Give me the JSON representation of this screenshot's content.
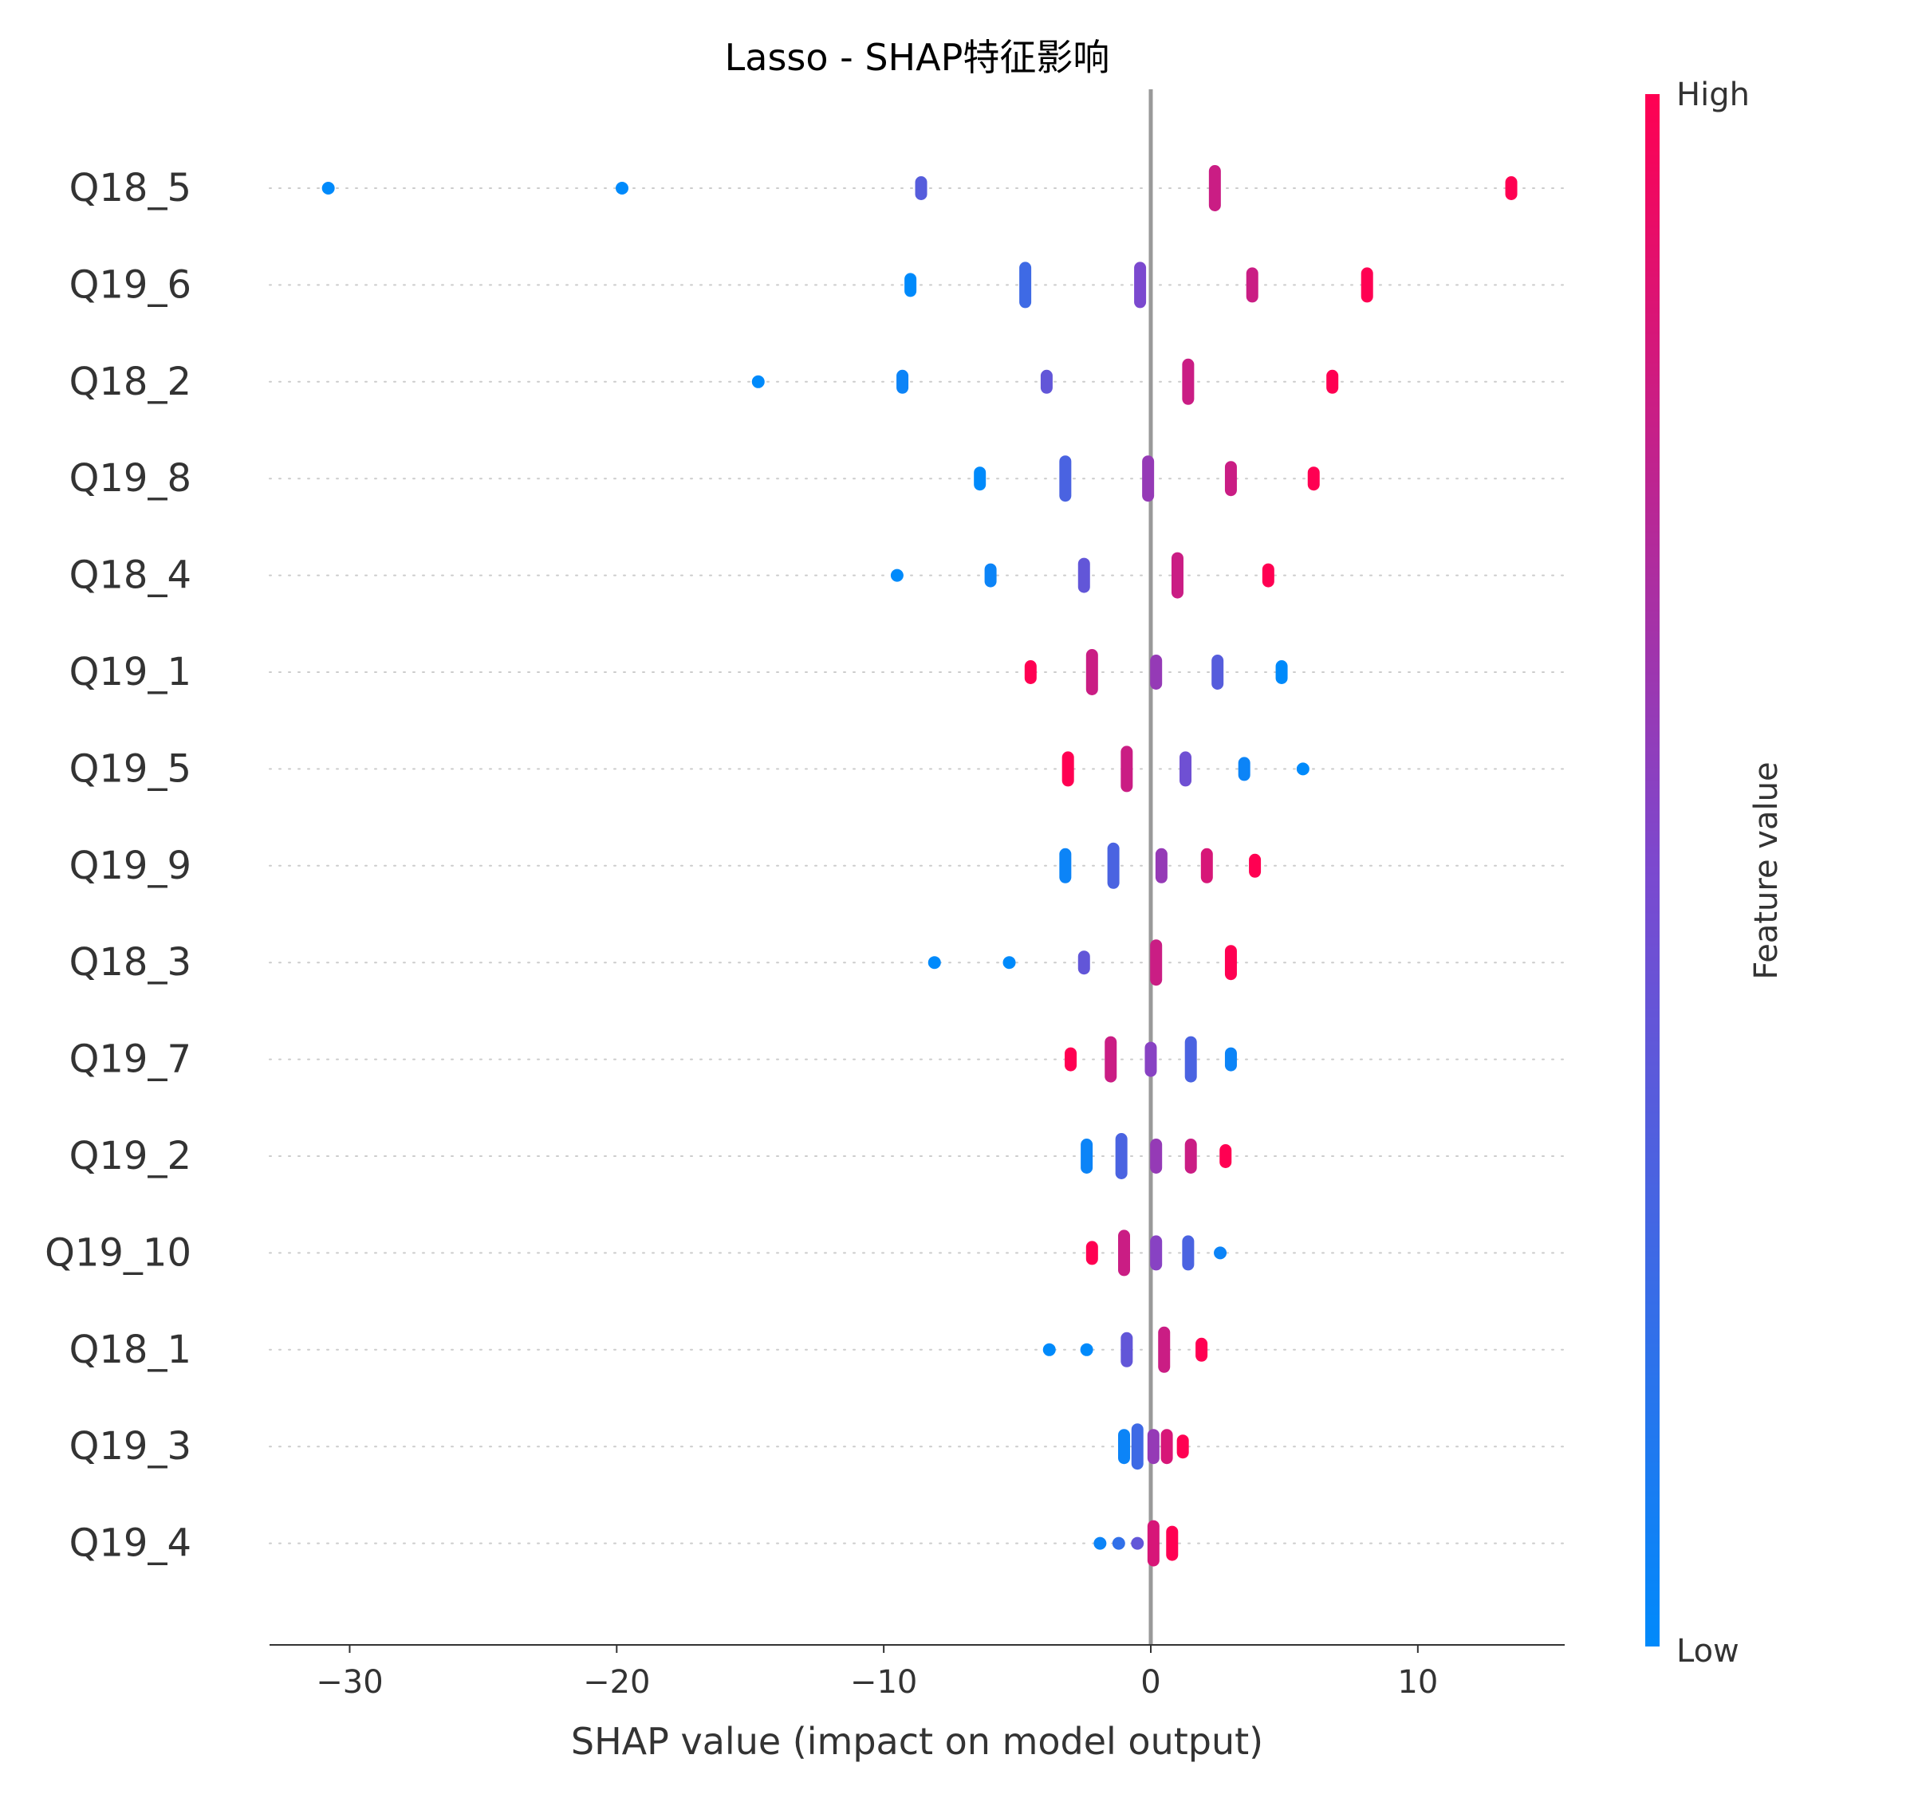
{
  "chart_data": {
    "type": "scatter",
    "subtype": "shap-beeswarm",
    "title": "Lasso - SHAP特征影响",
    "xlabel": "SHAP value (impact on model output)",
    "xlim": [
      -33,
      15.5
    ],
    "xticks": [
      {
        "value": -30,
        "label": "−30"
      },
      {
        "value": -20,
        "label": "−20"
      },
      {
        "value": -10,
        "label": "−10"
      },
      {
        "value": 0,
        "label": "0"
      },
      {
        "value": 10,
        "label": "10"
      }
    ],
    "colorbar": {
      "label": "Feature value",
      "high_label": "High",
      "low_label": "Low",
      "low_color": "#008afb",
      "mid_color": "#7b49cf",
      "high_color": "#ff0052"
    },
    "features": [
      {
        "name": "Q18_5",
        "points": [
          {
            "x": -30.8,
            "f": 0.0,
            "n": 1
          },
          {
            "x": -19.8,
            "f": 0.0,
            "n": 1
          },
          {
            "x": -8.6,
            "f": 0.35,
            "n": 2
          },
          {
            "x": 2.4,
            "f": 0.8,
            "n": 4
          },
          {
            "x": 13.5,
            "f": 1.0,
            "n": 2
          }
        ]
      },
      {
        "name": "Q19_6",
        "points": [
          {
            "x": -9.0,
            "f": 0.0,
            "n": 2
          },
          {
            "x": -4.7,
            "f": 0.25,
            "n": 4
          },
          {
            "x": -0.4,
            "f": 0.5,
            "n": 4
          },
          {
            "x": 3.8,
            "f": 0.8,
            "n": 3
          },
          {
            "x": 8.1,
            "f": 1.0,
            "n": 3
          }
        ]
      },
      {
        "name": "Q18_2",
        "points": [
          {
            "x": -14.7,
            "f": 0.0,
            "n": 1
          },
          {
            "x": -9.3,
            "f": 0.05,
            "n": 2
          },
          {
            "x": -3.9,
            "f": 0.4,
            "n": 2
          },
          {
            "x": 1.4,
            "f": 0.8,
            "n": 4
          },
          {
            "x": 6.8,
            "f": 1.0,
            "n": 2
          }
        ]
      },
      {
        "name": "Q19_8",
        "points": [
          {
            "x": -6.4,
            "f": 0.0,
            "n": 2
          },
          {
            "x": -3.2,
            "f": 0.3,
            "n": 4
          },
          {
            "x": -0.1,
            "f": 0.6,
            "n": 4
          },
          {
            "x": 3.0,
            "f": 0.8,
            "n": 3
          },
          {
            "x": 6.1,
            "f": 1.0,
            "n": 2
          }
        ]
      },
      {
        "name": "Q18_4",
        "points": [
          {
            "x": -9.5,
            "f": 0.0,
            "n": 1
          },
          {
            "x": -6.0,
            "f": 0.05,
            "n": 2
          },
          {
            "x": -2.5,
            "f": 0.4,
            "n": 3
          },
          {
            "x": 1.0,
            "f": 0.8,
            "n": 4
          },
          {
            "x": 4.4,
            "f": 1.0,
            "n": 2
          }
        ]
      },
      {
        "name": "Q19_1",
        "points": [
          {
            "x": -4.5,
            "f": 1.0,
            "n": 2
          },
          {
            "x": -2.2,
            "f": 0.8,
            "n": 4
          },
          {
            "x": 0.2,
            "f": 0.6,
            "n": 3
          },
          {
            "x": 2.5,
            "f": 0.35,
            "n": 3
          },
          {
            "x": 4.9,
            "f": 0.0,
            "n": 2
          }
        ]
      },
      {
        "name": "Q19_5",
        "points": [
          {
            "x": -3.1,
            "f": 1.0,
            "n": 3
          },
          {
            "x": -0.9,
            "f": 0.8,
            "n": 4
          },
          {
            "x": 1.3,
            "f": 0.45,
            "n": 3
          },
          {
            "x": 3.5,
            "f": 0.05,
            "n": 2
          },
          {
            "x": 5.7,
            "f": 0.0,
            "n": 1
          }
        ]
      },
      {
        "name": "Q19_9",
        "points": [
          {
            "x": -3.2,
            "f": 0.05,
            "n": 3
          },
          {
            "x": -1.4,
            "f": 0.3,
            "n": 4
          },
          {
            "x": 0.4,
            "f": 0.6,
            "n": 3
          },
          {
            "x": 2.1,
            "f": 0.85,
            "n": 3
          },
          {
            "x": 3.9,
            "f": 1.0,
            "n": 2
          }
        ]
      },
      {
        "name": "Q18_3",
        "points": [
          {
            "x": -8.1,
            "f": 0.0,
            "n": 1
          },
          {
            "x": -5.3,
            "f": 0.0,
            "n": 1
          },
          {
            "x": -2.5,
            "f": 0.4,
            "n": 2
          },
          {
            "x": 0.2,
            "f": 0.8,
            "n": 4
          },
          {
            "x": 3.0,
            "f": 1.0,
            "n": 3
          }
        ]
      },
      {
        "name": "Q19_7",
        "points": [
          {
            "x": -3.0,
            "f": 1.0,
            "n": 2
          },
          {
            "x": -1.5,
            "f": 0.8,
            "n": 4
          },
          {
            "x": 0.0,
            "f": 0.55,
            "n": 3
          },
          {
            "x": 1.5,
            "f": 0.3,
            "n": 4
          },
          {
            "x": 3.0,
            "f": 0.05,
            "n": 2
          }
        ]
      },
      {
        "name": "Q19_2",
        "points": [
          {
            "x": -2.4,
            "f": 0.05,
            "n": 3
          },
          {
            "x": -1.1,
            "f": 0.3,
            "n": 4
          },
          {
            "x": 0.2,
            "f": 0.6,
            "n": 3
          },
          {
            "x": 1.5,
            "f": 0.8,
            "n": 3
          },
          {
            "x": 2.8,
            "f": 1.0,
            "n": 2
          }
        ]
      },
      {
        "name": "Q19_10",
        "points": [
          {
            "x": -2.2,
            "f": 1.0,
            "n": 2
          },
          {
            "x": -1.0,
            "f": 0.8,
            "n": 4
          },
          {
            "x": 0.2,
            "f": 0.55,
            "n": 3
          },
          {
            "x": 1.4,
            "f": 0.3,
            "n": 3
          },
          {
            "x": 2.6,
            "f": 0.05,
            "n": 1
          }
        ]
      },
      {
        "name": "Q18_1",
        "points": [
          {
            "x": -3.8,
            "f": 0.0,
            "n": 1
          },
          {
            "x": -2.4,
            "f": 0.0,
            "n": 1
          },
          {
            "x": -0.9,
            "f": 0.4,
            "n": 3
          },
          {
            "x": 0.5,
            "f": 0.8,
            "n": 4
          },
          {
            "x": 1.9,
            "f": 1.0,
            "n": 2
          }
        ]
      },
      {
        "name": "Q19_3",
        "points": [
          {
            "x": -1.0,
            "f": 0.05,
            "n": 3
          },
          {
            "x": -0.5,
            "f": 0.25,
            "n": 4
          },
          {
            "x": 0.1,
            "f": 0.6,
            "n": 3
          },
          {
            "x": 0.6,
            "f": 0.85,
            "n": 3
          },
          {
            "x": 1.2,
            "f": 1.0,
            "n": 2
          }
        ]
      },
      {
        "name": "Q19_4",
        "points": [
          {
            "x": -1.9,
            "f": 0.05,
            "n": 1
          },
          {
            "x": -1.2,
            "f": 0.2,
            "n": 1
          },
          {
            "x": -0.5,
            "f": 0.4,
            "n": 1
          },
          {
            "x": 0.1,
            "f": 0.85,
            "n": 4
          },
          {
            "x": 0.8,
            "f": 1.0,
            "n": 3
          }
        ]
      }
    ]
  }
}
